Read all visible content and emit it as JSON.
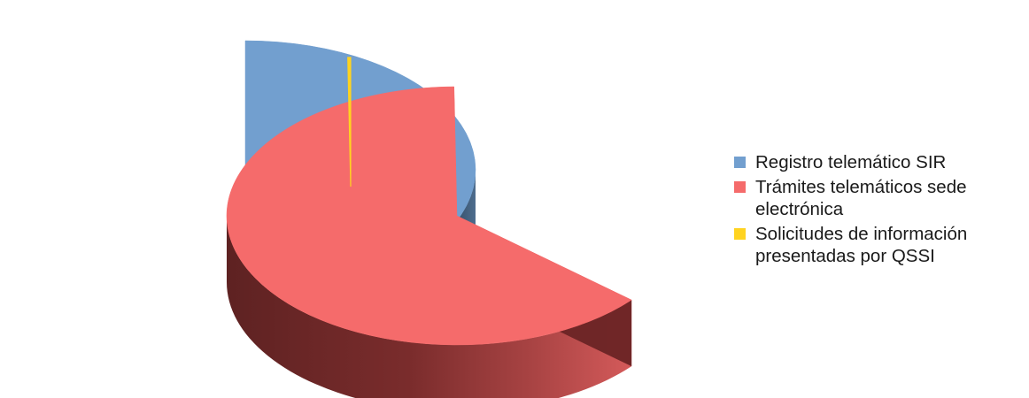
{
  "chart_data": {
    "type": "pie",
    "title": "",
    "slices": [
      {
        "label": "Registro telemático SIR",
        "value": 36.3,
        "color": "#729fcf",
        "dark": "#2c4156"
      },
      {
        "label": "Trámites telemáticos sede electrónica",
        "value": 63.5,
        "color": "#f56b6b",
        "dark": "#6a2425"
      },
      {
        "label": "Solicitudes de información presentadas por QSSI",
        "value": 0.2,
        "color": "#ffd320",
        "dark": "#8a6d00"
      }
    ],
    "legend_position": "right",
    "exploded": true,
    "three_d": true
  }
}
